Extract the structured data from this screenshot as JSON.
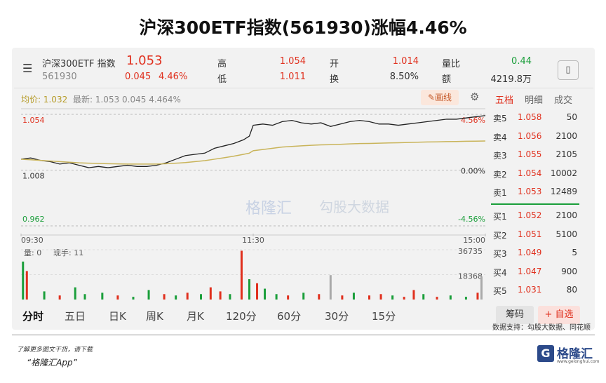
{
  "title": "沪深300ETF指数(561930)涨幅4.46%",
  "quote": {
    "name": "沪深300ETF 指数",
    "price": "1.053",
    "code": "561930",
    "change": "0.045",
    "pct": "4.46%",
    "stats": [
      {
        "label": "高",
        "value": "1.054"
      },
      {
        "label": "低",
        "value": "1.011"
      },
      {
        "label": "开",
        "value": "1.014"
      },
      {
        "label": "换",
        "value": "8.50%"
      },
      {
        "label": "量比",
        "value": "0.44"
      },
      {
        "label": "额",
        "value": "4219.8万"
      }
    ]
  },
  "info_bar": {
    "avg": "均价: 1.032",
    "latest": "最新: 1.053  0.045  4.464%",
    "draw_button": "画线"
  },
  "watermark": {
    "brand": "格隆汇",
    "partner": "勾股大数据"
  },
  "chart_data": [
    {
      "type": "line",
      "x": [
        0,
        5,
        10,
        15,
        20,
        25,
        30,
        35,
        40,
        45,
        50,
        55,
        60,
        65,
        70,
        75,
        80,
        85,
        90,
        95,
        100,
        105,
        110,
        115,
        118,
        120,
        125,
        130,
        135,
        140,
        145,
        150,
        155,
        160,
        165,
        170,
        175,
        180,
        185,
        190,
        195,
        200,
        205,
        210,
        215,
        220,
        225,
        230,
        235,
        240
      ],
      "series": [
        {
          "color": "#222222",
          "values": [
            1.017,
            1.018,
            1.016,
            1.015,
            1.013,
            1.014,
            1.012,
            1.01,
            1.011,
            1.01,
            1.011,
            1.012,
            1.011,
            1.011,
            1.012,
            1.014,
            1.017,
            1.02,
            1.021,
            1.022,
            1.026,
            1.028,
            1.03,
            1.033,
            1.036,
            1.045,
            1.046,
            1.045,
            1.048,
            1.049,
            1.047,
            1.046,
            1.047,
            1.044,
            1.046,
            1.048,
            1.049,
            1.048,
            1.046,
            1.046,
            1.045,
            1.046,
            1.047,
            1.048,
            1.049,
            1.05,
            1.05,
            1.051,
            1.052,
            1.053
          ]
        },
        {
          "color": "#c9b45a",
          "values": [
            1.017,
            1.0165,
            1.016,
            1.0155,
            1.015,
            1.0145,
            1.014,
            1.0137,
            1.0135,
            1.0133,
            1.0131,
            1.013,
            1.013,
            1.013,
            1.013,
            1.0133,
            1.0137,
            1.0142,
            1.015,
            1.0158,
            1.017,
            1.0182,
            1.0195,
            1.021,
            1.022,
            1.024,
            1.025,
            1.026,
            1.027,
            1.0275,
            1.028,
            1.0285,
            1.0288,
            1.029,
            1.0293,
            1.0296,
            1.0299,
            1.03,
            1.0302,
            1.0304,
            1.0306,
            1.0308,
            1.031,
            1.0312,
            1.0313,
            1.0315,
            1.0316,
            1.0318,
            1.0319,
            1.032
          ]
        }
      ],
      "ylim": [
        0.962,
        1.054
      ],
      "yticks": [
        0.962,
        1.008,
        1.054
      ],
      "y2lim": [
        -4.56,
        4.56
      ],
      "y2ticks": [
        {
          "value": -4.56,
          "label": "-4.56%"
        },
        {
          "value": 0,
          "label": "0.00%"
        },
        {
          "value": 4.56,
          "label": "4.56%"
        }
      ],
      "xlim": [
        0,
        240
      ],
      "xticks": [
        {
          "value": 0,
          "label": "09:30"
        },
        {
          "value": 120,
          "label": "11:30"
        },
        {
          "value": 240,
          "label": "15:00"
        }
      ]
    },
    {
      "type": "bar",
      "annotations": [
        "量: 0",
        "现手: 11"
      ],
      "x": [
        1,
        3,
        12,
        20,
        28,
        33,
        42,
        50,
        58,
        66,
        74,
        80,
        86,
        93,
        98,
        103,
        108,
        114,
        118,
        122,
        126,
        132,
        138,
        146,
        154,
        160,
        166,
        172,
        180,
        186,
        192,
        198,
        203,
        208,
        215,
        222,
        230,
        236,
        238
      ],
      "values": [
        28000,
        21000,
        6000,
        3000,
        9000,
        4000,
        5000,
        3000,
        2000,
        7000,
        4000,
        3000,
        5000,
        4000,
        9000,
        6000,
        4000,
        36000,
        15000,
        12000,
        8000,
        4000,
        3000,
        5000,
        4000,
        18000,
        3000,
        5000,
        3000,
        4000,
        3000,
        2000,
        7000,
        4000,
        2000,
        3000,
        2000,
        5000,
        17000
      ],
      "colors": [
        "#1a9e3a",
        "#e0301e",
        "#1a9e3a",
        "#e0301e",
        "#1a9e3a",
        "#1a9e3a",
        "#1a9e3a",
        "#e0301e",
        "#1a9e3a",
        "#1a9e3a",
        "#e0301e",
        "#1a9e3a",
        "#e0301e",
        "#1a9e3a",
        "#e0301e",
        "#e0301e",
        "#1a9e3a",
        "#e0301e",
        "#1a9e3a",
        "#e0301e",
        "#1a9e3a",
        "#1a9e3a",
        "#e0301e",
        "#1a9e3a",
        "#e0301e",
        "#aaaaaa",
        "#e0301e",
        "#1a9e3a",
        "#e0301e",
        "#e0301e",
        "#1a9e3a",
        "#e0301e",
        "#e0301e",
        "#1a9e3a",
        "#e0301e",
        "#1a9e3a",
        "#1a9e3a",
        "#e0301e",
        "#aaaaaa"
      ],
      "xlim": [
        0,
        240
      ],
      "ylim": [
        0,
        36735
      ],
      "yticks": [
        18368,
        36735
      ]
    }
  ],
  "order_book": {
    "tabs": [
      "五档",
      "明细",
      "成交"
    ],
    "asks": [
      {
        "label": "卖5",
        "price": "1.058",
        "volume": "50"
      },
      {
        "label": "卖4",
        "price": "1.056",
        "volume": "2100"
      },
      {
        "label": "卖3",
        "price": "1.055",
        "volume": "2105"
      },
      {
        "label": "卖2",
        "price": "1.054",
        "volume": "10002"
      },
      {
        "label": "卖1",
        "price": "1.053",
        "volume": "12489"
      }
    ],
    "bids": [
      {
        "label": "买1",
        "price": "1.052",
        "volume": "2100"
      },
      {
        "label": "买2",
        "price": "1.051",
        "volume": "5100"
      },
      {
        "label": "买3",
        "price": "1.049",
        "volume": "5"
      },
      {
        "label": "买4",
        "price": "1.047",
        "volume": "900"
      },
      {
        "label": "买5",
        "price": "1.031",
        "volume": "80"
      }
    ]
  },
  "period_tabs": [
    "分时",
    "五日",
    "日K",
    "周K",
    "月K",
    "120分",
    "60分",
    "30分",
    "15分"
  ],
  "buttons": {
    "chips": "筹码",
    "watchlist": "+ 自选"
  },
  "footer": {
    "source": "数据支持：勾股大数据、同花顺",
    "promo": "了解更多图文干货，请下载",
    "app": "“格隆汇App”",
    "logo": "格隆汇",
    "site": "www.gelonghui.com"
  }
}
